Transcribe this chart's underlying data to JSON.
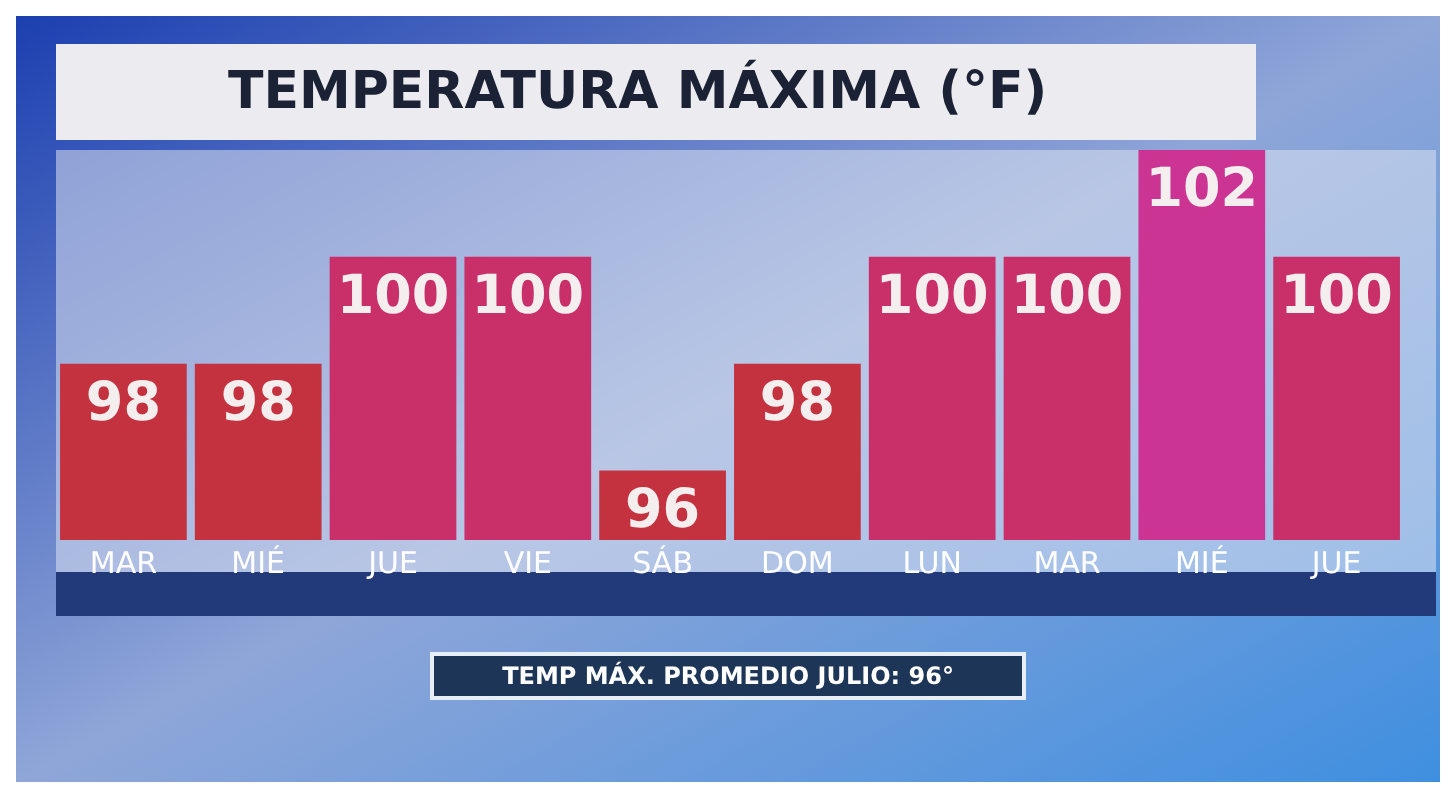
{
  "chart_data": {
    "type": "bar",
    "title": "TEMPERATURA MÁXIMA (°F)",
    "categories": [
      "MAR",
      "MIÉ",
      "JUE",
      "VIE",
      "SÁB",
      "DOM",
      "LUN",
      "MAR",
      "MIÉ",
      "JUE"
    ],
    "values": [
      98,
      98,
      100,
      100,
      96,
      98,
      100,
      100,
      102,
      100
    ],
    "colors": [
      "#c5323f",
      "#c5323f",
      "#c9306a",
      "#c9306a",
      "#c5323f",
      "#c5323f",
      "#c9306a",
      "#c9306a",
      "#cc3494",
      "#c9306a"
    ],
    "ylim": [
      94.7,
      102
    ],
    "data_labels": true,
    "annotations": [
      "TEMP MÁX. PROMEDIO JULIO: 96°"
    ]
  }
}
